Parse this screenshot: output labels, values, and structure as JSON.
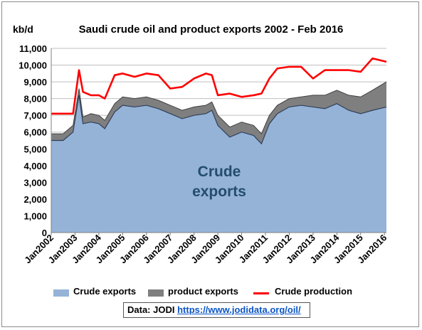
{
  "chart_data": {
    "type": "area",
    "title": "Saudi crude oil and product exports 2002 - Feb 2016",
    "ylabel": "kb/d",
    "ylim": [
      0,
      11000
    ],
    "yticks": [
      "0",
      "1,000",
      "2,000",
      "3,000",
      "4,000",
      "5,000",
      "6,000",
      "7,000",
      "8,000",
      "9,000",
      "10,000",
      "11,000"
    ],
    "xticks": [
      "Jan2002",
      "Jan2003",
      "Jan2004",
      "Jan2005",
      "Jan2006",
      "Jan2007",
      "Jan2008",
      "Jan2009",
      "Jan2010",
      "Jan2011",
      "Jan2012",
      "Jan2013",
      "Jan2014",
      "Jan2015",
      "Jan2016"
    ],
    "x_range": [
      "2002-01",
      "2016-02"
    ],
    "annotation": [
      "Crude",
      "exports"
    ],
    "grid": "horizontal",
    "legend_position": "bottom",
    "series": [
      {
        "name": "Crude exports",
        "kind": "stacked-area",
        "color": "#95b3d7",
        "points": [
          [
            "2002-01",
            5500
          ],
          [
            "2002-07",
            5500
          ],
          [
            "2002-12",
            6000
          ],
          [
            "2003-03",
            8200
          ],
          [
            "2003-05",
            6500
          ],
          [
            "2003-09",
            6600
          ],
          [
            "2004-01",
            6500
          ],
          [
            "2004-04",
            6200
          ],
          [
            "2004-09",
            7200
          ],
          [
            "2005-01",
            7600
          ],
          [
            "2005-07",
            7500
          ],
          [
            "2006-01",
            7600
          ],
          [
            "2006-07",
            7400
          ],
          [
            "2007-01",
            7100
          ],
          [
            "2007-07",
            6800
          ],
          [
            "2008-01",
            7000
          ],
          [
            "2008-07",
            7100
          ],
          [
            "2008-10",
            7300
          ],
          [
            "2009-01",
            6400
          ],
          [
            "2009-07",
            5700
          ],
          [
            "2010-01",
            6000
          ],
          [
            "2010-07",
            5800
          ],
          [
            "2010-11",
            5300
          ],
          [
            "2011-03",
            6500
          ],
          [
            "2011-07",
            7100
          ],
          [
            "2012-01",
            7500
          ],
          [
            "2012-07",
            7600
          ],
          [
            "2013-01",
            7500
          ],
          [
            "2013-07",
            7400
          ],
          [
            "2014-01",
            7700
          ],
          [
            "2014-07",
            7300
          ],
          [
            "2015-01",
            7100
          ],
          [
            "2015-07",
            7300
          ],
          [
            "2016-02",
            7500
          ]
        ]
      },
      {
        "name": "product exports",
        "kind": "stacked-area",
        "color": "#7f7f7f",
        "points": [
          [
            "2002-01",
            400
          ],
          [
            "2002-07",
            400
          ],
          [
            "2002-12",
            400
          ],
          [
            "2003-03",
            400
          ],
          [
            "2003-05",
            400
          ],
          [
            "2003-09",
            500
          ],
          [
            "2004-01",
            500
          ],
          [
            "2004-04",
            500
          ],
          [
            "2004-09",
            500
          ],
          [
            "2005-01",
            500
          ],
          [
            "2005-07",
            500
          ],
          [
            "2006-01",
            500
          ],
          [
            "2006-07",
            500
          ],
          [
            "2007-01",
            500
          ],
          [
            "2007-07",
            500
          ],
          [
            "2008-01",
            500
          ],
          [
            "2008-07",
            500
          ],
          [
            "2008-10",
            500
          ],
          [
            "2009-01",
            600
          ],
          [
            "2009-07",
            600
          ],
          [
            "2010-01",
            600
          ],
          [
            "2010-07",
            600
          ],
          [
            "2010-11",
            600
          ],
          [
            "2011-03",
            500
          ],
          [
            "2011-07",
            500
          ],
          [
            "2012-01",
            500
          ],
          [
            "2012-07",
            500
          ],
          [
            "2013-01",
            700
          ],
          [
            "2013-07",
            800
          ],
          [
            "2014-01",
            800
          ],
          [
            "2014-07",
            900
          ],
          [
            "2015-01",
            1000
          ],
          [
            "2015-07",
            1200
          ],
          [
            "2016-02",
            1500
          ]
        ]
      },
      {
        "name": "Crude production",
        "kind": "line",
        "color": "#ff0000",
        "points": [
          [
            "2002-01",
            7100
          ],
          [
            "2002-07",
            7100
          ],
          [
            "2002-12",
            7100
          ],
          [
            "2003-03",
            9700
          ],
          [
            "2003-05",
            8400
          ],
          [
            "2003-09",
            8200
          ],
          [
            "2004-01",
            8200
          ],
          [
            "2004-04",
            8000
          ],
          [
            "2004-09",
            9400
          ],
          [
            "2005-01",
            9500
          ],
          [
            "2005-07",
            9300
          ],
          [
            "2006-01",
            9500
          ],
          [
            "2006-07",
            9400
          ],
          [
            "2007-01",
            8600
          ],
          [
            "2007-07",
            8700
          ],
          [
            "2008-01",
            9200
          ],
          [
            "2008-07",
            9500
          ],
          [
            "2008-10",
            9400
          ],
          [
            "2009-01",
            8200
          ],
          [
            "2009-07",
            8300
          ],
          [
            "2010-01",
            8100
          ],
          [
            "2010-07",
            8200
          ],
          [
            "2010-11",
            8300
          ],
          [
            "2011-03",
            9200
          ],
          [
            "2011-07",
            9800
          ],
          [
            "2012-01",
            9900
          ],
          [
            "2012-07",
            9900
          ],
          [
            "2013-01",
            9200
          ],
          [
            "2013-07",
            9700
          ],
          [
            "2014-01",
            9700
          ],
          [
            "2014-07",
            9700
          ],
          [
            "2015-01",
            9600
          ],
          [
            "2015-07",
            10400
          ],
          [
            "2016-02",
            10200
          ]
        ]
      }
    ]
  },
  "source": {
    "label": "Data: JODI",
    "link_text": "https://www.jodidata.org/oil/"
  }
}
